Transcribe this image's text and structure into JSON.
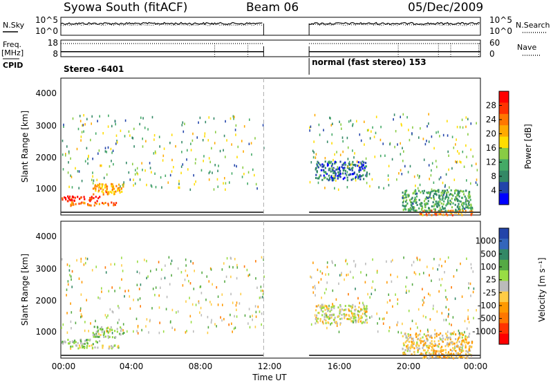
{
  "header": {
    "station": "Syowa South (fitACF)",
    "beam": "Beam 06",
    "date": "05/Dec/2009"
  },
  "status_panels": {
    "nsky_label": "N.Sky",
    "nsearch_label": "N.Search",
    "noise_ticks": [
      "10^5",
      "10^0"
    ],
    "noise_ticks_right": [
      "10^5",
      "10^0"
    ],
    "freq_label": "Freq.",
    "freq_unit": "[MHz]",
    "freq_ticks": [
      "18",
      "8"
    ],
    "nave_label": "Nave",
    "nave_ticks": [
      "60",
      "0"
    ],
    "cpid_label": "CPID",
    "cpid_segments": [
      {
        "name": "Stereo -6401",
        "start_hour": 0,
        "end_hour": 14.2
      },
      {
        "name": "normal (fast stereo) 153",
        "start_hour": 14.2,
        "end_hour": 24
      }
    ]
  },
  "axes": {
    "ylabel": "Slant Range [km]",
    "yticks": [
      "4000",
      "3000",
      "2000",
      "1000"
    ],
    "xlabel": "Time UT",
    "xticks": [
      "00:00",
      "04:00",
      "08:00",
      "12:00",
      "16:00",
      "20:00",
      "00:00"
    ]
  },
  "colorbars": {
    "power": {
      "label": "Power [dB]",
      "ticks": [
        "28",
        "24",
        "20",
        "16",
        "12",
        "8",
        "4"
      ],
      "colors": [
        "#ff0000",
        "#ff3300",
        "#ff7700",
        "#ffaa00",
        "#ffdd00",
        "#88cc44",
        "#44aa66",
        "#338866",
        "#2244aa",
        "#0000ff"
      ]
    },
    "velocity": {
      "label": "Velocity [m s⁻¹]",
      "ticks": [
        "1000",
        "500",
        "100",
        "25",
        "-25",
        "-100",
        "-500",
        "-1000"
      ],
      "colors": [
        "#2244aa",
        "#3366bb",
        "#338866",
        "#55aa44",
        "#99dd44",
        "#bbbbbb",
        "#ffcc44",
        "#ff9900",
        "#ff7700",
        "#ff3300",
        "#ff0000"
      ]
    }
  },
  "chart_data": [
    {
      "type": "line",
      "title": "N.Sky / N.Search",
      "x_unit": "hours UT",
      "xlim": [
        0,
        24
      ],
      "segments": [
        [
          0,
          11.6
        ],
        [
          14.2,
          24
        ]
      ],
      "ylim_log10": [
        0,
        5
      ]
    },
    {
      "type": "line",
      "title": "Freq. / Nave",
      "xlim": [
        0,
        24
      ],
      "freq_mhz_level": 11,
      "nave_level": 40,
      "freq_lim": [
        8,
        18
      ],
      "nave_lim": [
        0,
        60
      ]
    },
    {
      "type": "heatmap",
      "title": "Power [dB]",
      "xlim": [
        0,
        24
      ],
      "ylim": [
        180,
        4500
      ],
      "vlim": [
        0,
        30
      ],
      "gap_hours": [
        11.6,
        14.2
      ],
      "dashed_marker_hour": 11.6,
      "clusters": [
        {
          "x": [
            0,
            2.2
          ],
          "y": [
            650,
            800
          ],
          "v": 28
        },
        {
          "x": [
            0.5,
            3.3
          ],
          "y": [
            500,
            620
          ],
          "v": 22
        },
        {
          "x": [
            1.8,
            3.6
          ],
          "y": [
            850,
            1200
          ],
          "v": 20
        },
        {
          "x": [
            14.5,
            17.5
          ],
          "y": [
            1300,
            1900
          ],
          "v": 6
        },
        {
          "x": [
            19.5,
            23.5
          ],
          "y": [
            300,
            1000
          ],
          "v": 10
        },
        {
          "x": [
            20.5,
            23.5
          ],
          "y": [
            200,
            350
          ],
          "v": 22
        }
      ],
      "sparse": {
        "x": [
          0,
          23.8
        ],
        "y": [
          1000,
          3400
        ],
        "v": 12
      }
    },
    {
      "type": "heatmap",
      "title": "Velocity [m s⁻¹]",
      "xlim": [
        0,
        24
      ],
      "ylim": [
        180,
        4500
      ],
      "vlim": [
        -1000,
        1000
      ],
      "gap_hours": [
        11.6,
        14.2
      ],
      "dashed_marker_hour": 11.6,
      "clusters": [
        {
          "x": [
            0,
            2.2
          ],
          "y": [
            650,
            800
          ],
          "v": 200
        },
        {
          "x": [
            0.5,
            3.3
          ],
          "y": [
            500,
            620
          ],
          "v": 50
        },
        {
          "x": [
            1.8,
            3.6
          ],
          "y": [
            850,
            1200
          ],
          "v": 150
        },
        {
          "x": [
            14.5,
            17.5
          ],
          "y": [
            1300,
            1900
          ],
          "v": 0
        },
        {
          "x": [
            19.5,
            23.5
          ],
          "y": [
            300,
            1000
          ],
          "v": -150
        },
        {
          "x": [
            20.5,
            23.5
          ],
          "y": [
            200,
            350
          ],
          "v": -300
        }
      ],
      "sparse": {
        "x": [
          0,
          23.8
        ],
        "y": [
          1000,
          3400
        ],
        "v": 0
      }
    }
  ]
}
